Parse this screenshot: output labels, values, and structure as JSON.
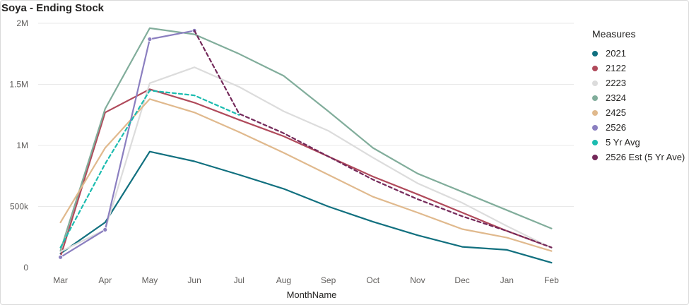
{
  "title": "Soya - Ending Stock",
  "legend": {
    "title": "Measures"
  },
  "chart_data": {
    "type": "line",
    "title": "Soya - Ending Stock",
    "xlabel": "MonthName",
    "ylabel": "",
    "categories": [
      "Mar",
      "Apr",
      "May",
      "Jun",
      "Jul",
      "Aug",
      "Sep",
      "Oct",
      "Nov",
      "Dec",
      "Jan",
      "Feb"
    ],
    "ylim": [
      0,
      2000000
    ],
    "yticks": [
      0,
      500000,
      1000000,
      1500000,
      2000000
    ],
    "ytick_labels": [
      "0",
      "500k",
      "1M",
      "1.5M",
      "2M"
    ],
    "grid": true,
    "legend_position": "right",
    "series": [
      {
        "name": "2021",
        "color": "#11707f",
        "dashed": false,
        "markers": false,
        "values": [
          115000,
          370000,
          950000,
          870000,
          760000,
          645000,
          500000,
          375000,
          265000,
          170000,
          145000,
          40000
        ]
      },
      {
        "name": "2122",
        "color": "#b04a5b",
        "dashed": false,
        "markers": false,
        "values": [
          90000,
          1270000,
          1460000,
          1350000,
          1210000,
          1075000,
          910000,
          745000,
          600000,
          450000,
          300000,
          165000
        ]
      },
      {
        "name": "2223",
        "color": "#dcdcdc",
        "dashed": false,
        "markers": false,
        "values": [
          130000,
          310000,
          1510000,
          1640000,
          1480000,
          1280000,
          1120000,
          900000,
          690000,
          530000,
          340000,
          160000
        ]
      },
      {
        "name": "2324",
        "color": "#81ad9b",
        "dashed": false,
        "markers": false,
        "values": [
          140000,
          1300000,
          1960000,
          1910000,
          1750000,
          1570000,
          1280000,
          980000,
          770000,
          620000,
          470000,
          320000
        ]
      },
      {
        "name": "2425",
        "color": "#e0b98d",
        "dashed": false,
        "markers": false,
        "values": [
          370000,
          980000,
          1380000,
          1270000,
          1110000,
          940000,
          760000,
          580000,
          450000,
          315000,
          245000,
          135000
        ]
      },
      {
        "name": "2526",
        "color": "#8b7fc0",
        "dashed": false,
        "markers": true,
        "values": [
          85000,
          310000,
          1870000,
          1940000,
          null,
          null,
          null,
          null,
          null,
          null,
          null,
          null
        ]
      },
      {
        "name": "5 Yr Avg",
        "color": "#1cbcb0",
        "dashed": true,
        "markers": false,
        "values": [
          165000,
          850000,
          1450000,
          1410000,
          1250000,
          null,
          null,
          null,
          null,
          null,
          null,
          null
        ]
      },
      {
        "name": "2526 Est (5 Yr Ave)",
        "color": "#74295a",
        "dashed": true,
        "markers": false,
        "values": [
          null,
          null,
          null,
          1940000,
          1260000,
          1100000,
          910000,
          720000,
          560000,
          420000,
          300000,
          165000
        ]
      }
    ]
  }
}
